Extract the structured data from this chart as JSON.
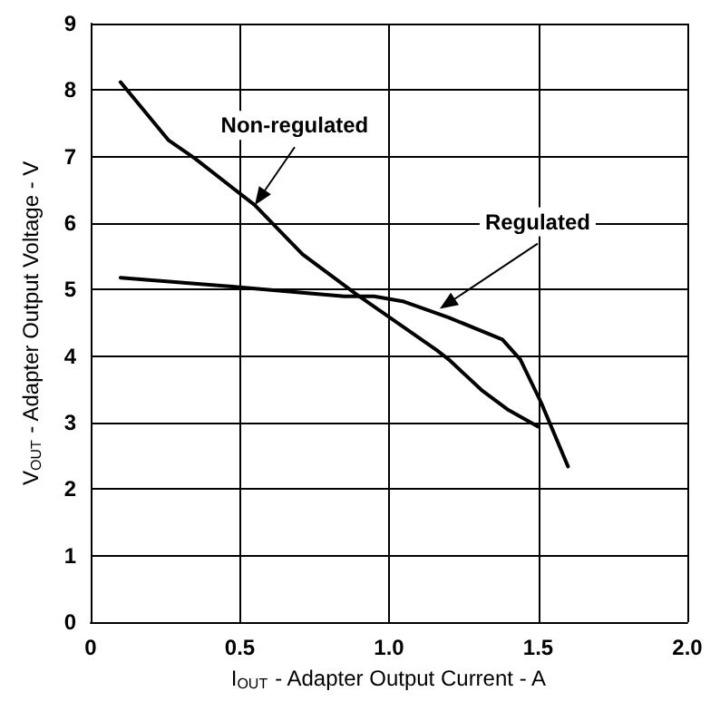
{
  "chart_data": {
    "type": "line",
    "xlabel": "I$_{OUT}$ - Adapter Output Current - A",
    "ylabel": "V$_{OUT}$ - Adapter Output Voltage - V",
    "xlim": [
      0,
      2
    ],
    "xticks": [
      0,
      {
        "value": 0.5,
        "label": "0.5"
      },
      {
        "value": 1,
        "label": "1.0"
      },
      {
        "value": 1.5,
        "label": "1.5"
      },
      {
        "value": 2,
        "label": "2.0"
      }
    ],
    "ylim": [
      0,
      9
    ],
    "yticks": [
      0,
      1,
      2,
      3,
      4,
      5,
      6,
      7,
      8,
      9
    ],
    "grid": true,
    "marker": "none",
    "line_style": "solid",
    "series": [
      {
        "color": "#000000",
        "x": [
          0.1,
          0.26,
          0.35,
          0.55,
          0.71,
          0.89,
          1.16,
          1.2,
          1.31,
          1.4,
          1.5
        ],
        "values": [
          8.12,
          7.25,
          6.97,
          6.27,
          5.53,
          4.93,
          4.09,
          3.95,
          3.49,
          3.19,
          2.94
        ]
      },
      {
        "color": "#000000",
        "x": [
          0.1,
          0.49,
          0.85,
          0.95,
          1.05,
          1.2,
          1.38,
          1.44,
          1.51,
          1.6
        ],
        "values": [
          5.18,
          5.04,
          4.9,
          4.9,
          4.82,
          4.58,
          4.25,
          3.95,
          3.3,
          2.34
        ]
      }
    ],
    "annotations": [
      {
        "text": "Non-regulated",
        "x": 0.55,
        "y": 6.27
      },
      {
        "text": "Regulated",
        "x": 1.17,
        "y": 4.71
      }
    ]
  }
}
